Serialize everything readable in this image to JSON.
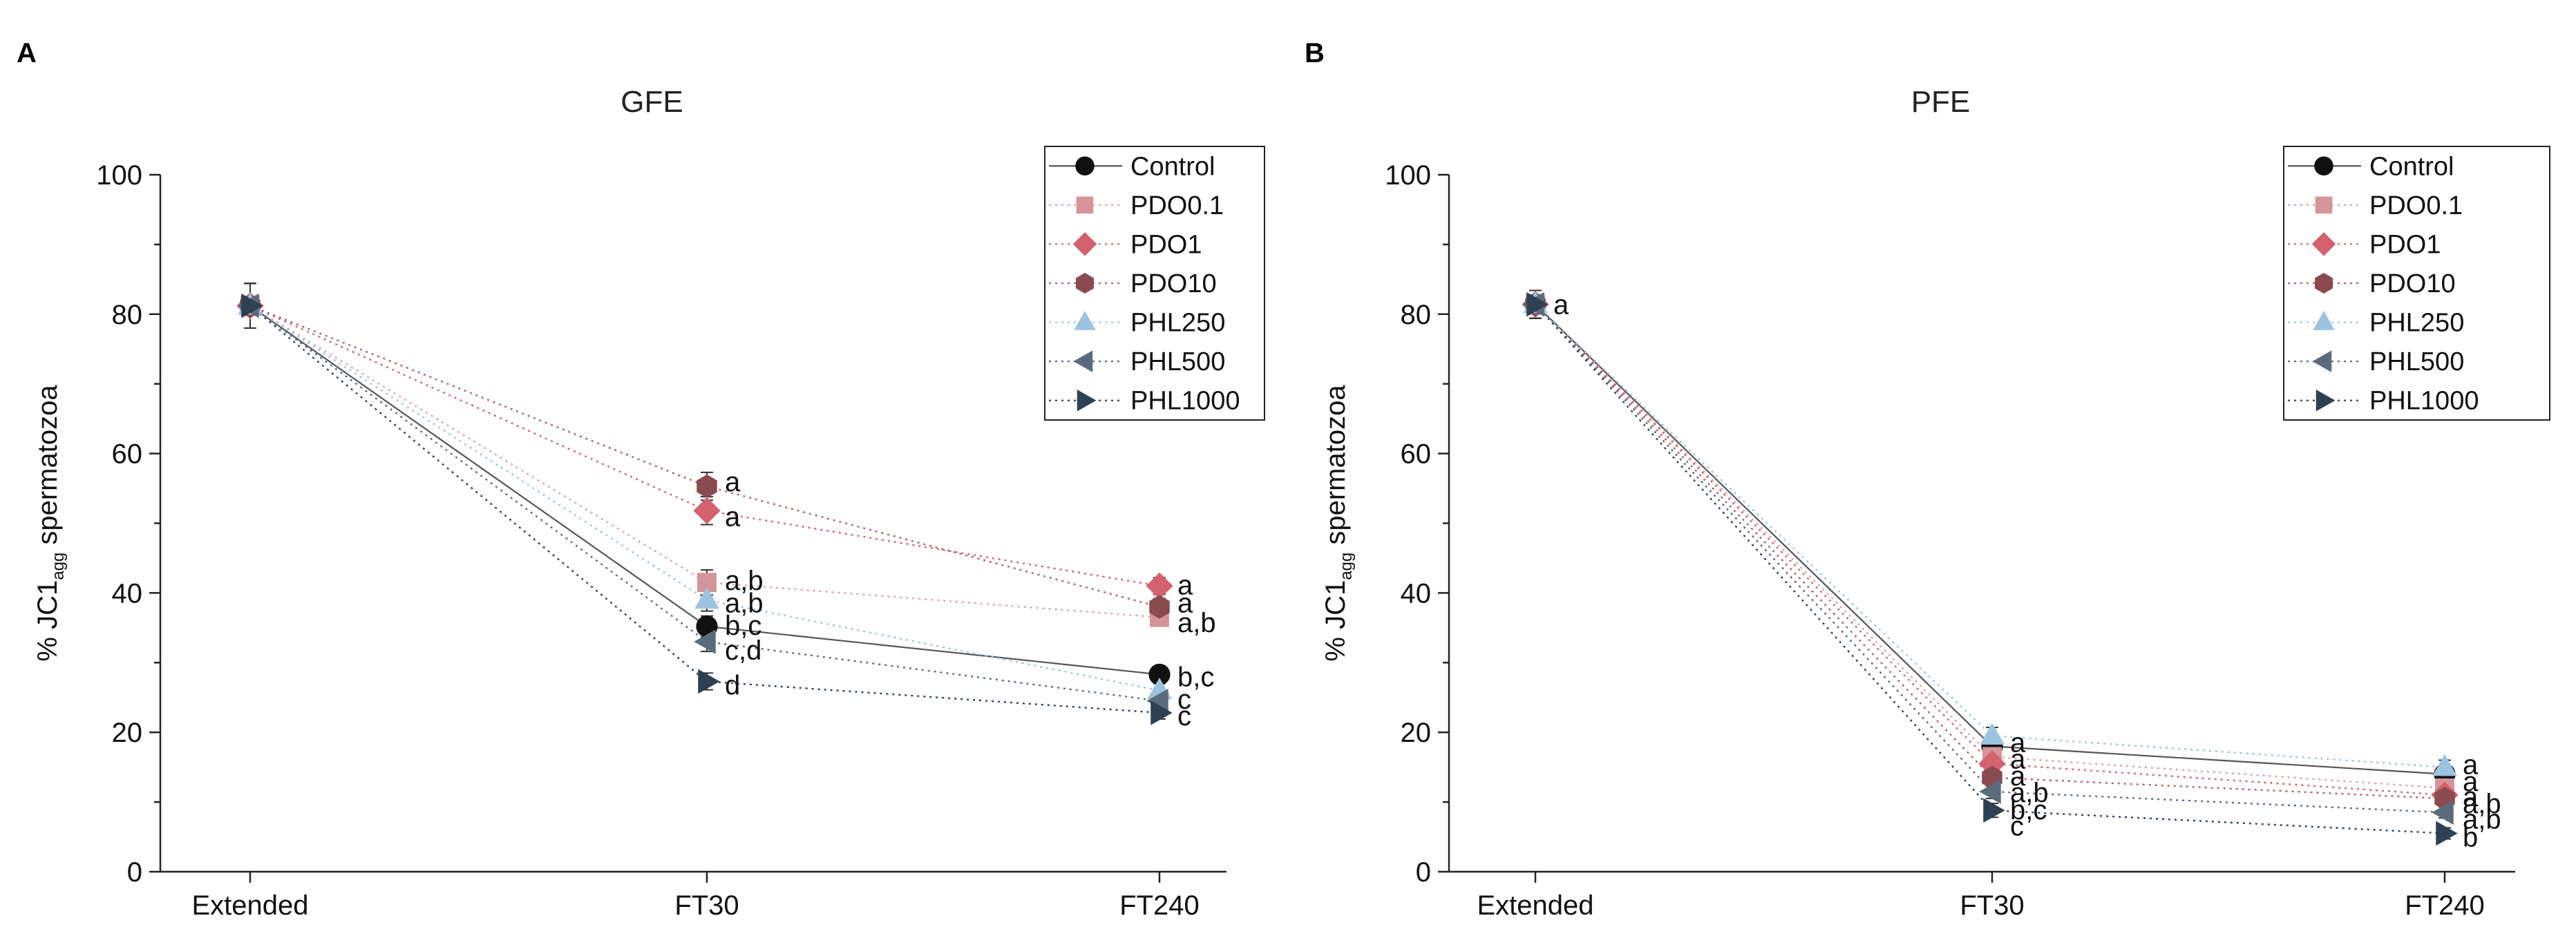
{
  "chart_data": [
    {
      "type": "line",
      "panel_label": "A",
      "title": "GFE",
      "xlabel": "",
      "ylabel": {
        "prefix": "% JC1",
        "subscript": "agg",
        "suffix": " spermatozoa"
      },
      "categories": [
        "Extended",
        "FT30",
        "FT240"
      ],
      "ylim": [
        0,
        100
      ],
      "yticks": [
        0,
        20,
        40,
        60,
        80,
        100
      ],
      "grid": false,
      "legend_position": "top-right",
      "series": [
        {
          "name": "Control",
          "values": [
            81.2,
            35.2,
            28.3
          ],
          "errors": [
            3.2,
            1.5,
            1.2
          ],
          "marker": "circle",
          "color": "#111111",
          "line_color": "#555555",
          "dash": "solid"
        },
        {
          "name": "PDO0.1",
          "values": [
            81.2,
            41.5,
            36.5
          ],
          "errors": [
            3.2,
            1.8,
            1.2
          ],
          "marker": "square",
          "color": "#d4949a",
          "line_color": "#e0a0a6",
          "dash": "dot"
        },
        {
          "name": "PDO1",
          "values": [
            81.2,
            51.8,
            41.0
          ],
          "errors": [
            3.2,
            2.0,
            1.2
          ],
          "marker": "diamond",
          "color": "#d4626e",
          "line_color": "#d4626e",
          "dash": "dot"
        },
        {
          "name": "PDO10",
          "values": [
            81.2,
            55.3,
            38.0
          ],
          "errors": [
            3.2,
            2.0,
            1.2
          ],
          "marker": "hexagon",
          "color": "#8a4a50",
          "line_color": "#b06066",
          "dash": "dot"
        },
        {
          "name": "PHL250",
          "values": [
            81.2,
            39.0,
            26.0
          ],
          "errors": [
            3.2,
            1.6,
            1.0
          ],
          "marker": "triangle-up",
          "color": "#9cc3e0",
          "line_color": "#9cc3e0",
          "dash": "dot"
        },
        {
          "name": "PHL500",
          "values": [
            81.2,
            33.0,
            24.5
          ],
          "errors": [
            3.2,
            1.4,
            1.0
          ],
          "marker": "triangle-left",
          "color": "#5a6c7c",
          "line_color": "#5a6c7c",
          "dash": "dot"
        },
        {
          "name": "PHL1000",
          "values": [
            81.2,
            27.3,
            22.8
          ],
          "errors": [
            3.2,
            1.2,
            0.9
          ],
          "marker": "triangle-right",
          "color": "#2e4154",
          "line_color": "#2e4154",
          "dash": "dot"
        }
      ],
      "annotations": [
        {
          "x": "FT30",
          "y": 56.0,
          "text": "a"
        },
        {
          "x": "FT30",
          "y": 51.0,
          "text": "a"
        },
        {
          "x": "FT30",
          "y": 41.8,
          "text": "a,b"
        },
        {
          "x": "FT30",
          "y": 38.6,
          "text": "a,b"
        },
        {
          "x": "FT30",
          "y": 35.4,
          "text": "b,c"
        },
        {
          "x": "FT30",
          "y": 31.8,
          "text": "c,d"
        },
        {
          "x": "FT30",
          "y": 26.8,
          "text": "d"
        },
        {
          "x": "FT240",
          "y": 41.2,
          "text": "a"
        },
        {
          "x": "FT240",
          "y": 38.6,
          "text": "a"
        },
        {
          "x": "FT240",
          "y": 35.8,
          "text": "a,b"
        },
        {
          "x": "FT240",
          "y": 28.0,
          "text": "b,c"
        },
        {
          "x": "FT240",
          "y": 24.8,
          "text": "c"
        },
        {
          "x": "FT240",
          "y": 22.4,
          "text": "c"
        }
      ]
    },
    {
      "type": "line",
      "panel_label": "B",
      "title": "PFE",
      "xlabel": "",
      "ylabel": {
        "prefix": "% JC1",
        "subscript": "agg",
        "suffix": " spermatozoa"
      },
      "categories": [
        "Extended",
        "FT30",
        "FT240"
      ],
      "ylim": [
        0,
        100
      ],
      "yticks": [
        0,
        20,
        40,
        60,
        80,
        100
      ],
      "grid": false,
      "legend_position": "top-right",
      "series": [
        {
          "name": "Control",
          "values": [
            81.4,
            18.0,
            14.0
          ],
          "errors": [
            2.0,
            1.2,
            1.0
          ],
          "marker": "circle",
          "color": "#111111",
          "line_color": "#555555",
          "dash": "solid"
        },
        {
          "name": "PDO0.1",
          "values": [
            81.4,
            16.5,
            12.0
          ],
          "errors": [
            2.0,
            1.2,
            1.0
          ],
          "marker": "square",
          "color": "#d4949a",
          "line_color": "#e0a0a6",
          "dash": "dot"
        },
        {
          "name": "PDO1",
          "values": [
            81.4,
            15.5,
            11.0
          ],
          "errors": [
            2.0,
            1.2,
            1.0
          ],
          "marker": "diamond",
          "color": "#d4626e",
          "line_color": "#d4626e",
          "dash": "dot"
        },
        {
          "name": "PDO10",
          "values": [
            81.4,
            13.5,
            10.5
          ],
          "errors": [
            2.0,
            1.2,
            1.0
          ],
          "marker": "hexagon",
          "color": "#8a4a50",
          "line_color": "#b06066",
          "dash": "dot"
        },
        {
          "name": "PHL250",
          "values": [
            81.4,
            19.5,
            15.0
          ],
          "errors": [
            2.0,
            1.2,
            1.0
          ],
          "marker": "triangle-up",
          "color": "#9cc3e0",
          "line_color": "#9cc3e0",
          "dash": "dot"
        },
        {
          "name": "PHL500",
          "values": [
            81.4,
            11.5,
            8.5
          ],
          "errors": [
            2.0,
            1.0,
            0.8
          ],
          "marker": "triangle-left",
          "color": "#5a6c7c",
          "line_color": "#5a6c7c",
          "dash": "dot"
        },
        {
          "name": "PHL1000",
          "values": [
            81.4,
            8.8,
            5.5
          ],
          "errors": [
            2.0,
            1.0,
            0.8
          ],
          "marker": "triangle-right",
          "color": "#2e4154",
          "line_color": "#2e4154",
          "dash": "dot"
        }
      ],
      "annotations": [
        {
          "x": "Extended",
          "y": 81.4,
          "text": "a"
        },
        {
          "x": "FT30",
          "y": 18.6,
          "text": "a"
        },
        {
          "x": "FT30",
          "y": 16.2,
          "text": "a"
        },
        {
          "x": "FT30",
          "y": 13.8,
          "text": "a"
        },
        {
          "x": "FT30",
          "y": 11.4,
          "text": "a,b"
        },
        {
          "x": "FT30",
          "y": 8.9,
          "text": "b,c"
        },
        {
          "x": "FT30",
          "y": 6.6,
          "text": "c"
        },
        {
          "x": "FT240",
          "y": 15.4,
          "text": "a"
        },
        {
          "x": "FT240",
          "y": 13.0,
          "text": "a"
        },
        {
          "x": "FT240",
          "y": 10.8,
          "text": "a"
        },
        {
          "x": "FT240",
          "y": 9.8,
          "text": "a,b"
        },
        {
          "x": "FT240",
          "y": 7.6,
          "text": "a,b"
        },
        {
          "x": "FT240",
          "y": 5.0,
          "text": "b"
        }
      ]
    }
  ]
}
